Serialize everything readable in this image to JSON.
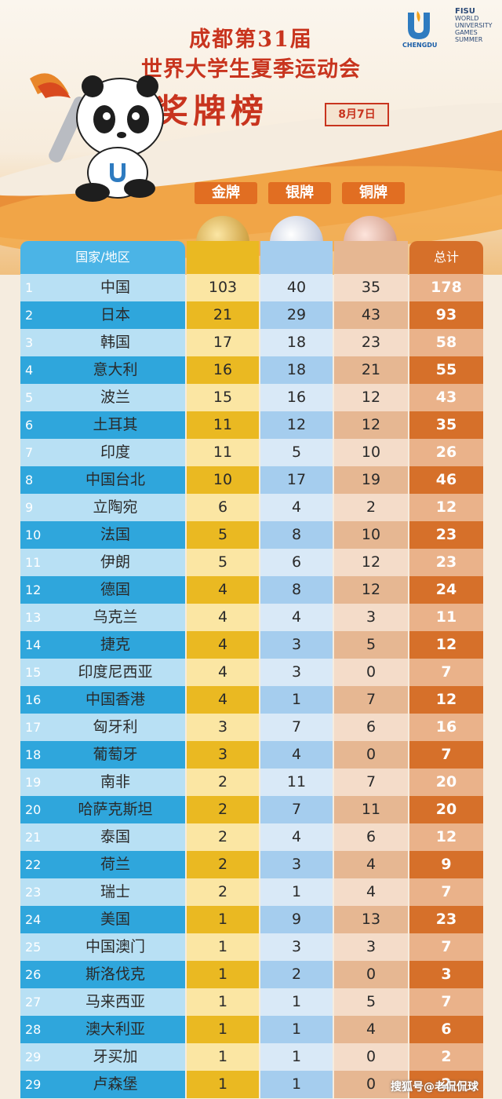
{
  "header": {
    "line1": "成都第31届",
    "line2": "世界大学生夏季运动会",
    "line3": "奖牌榜",
    "date": "8月7日",
    "host_logo_text": "CHENGDU",
    "fisu_title": "FISU",
    "fisu_lines": [
      "WORLD",
      "UNIVERSITY",
      "GAMES",
      "SUMMER"
    ]
  },
  "medals": {
    "gold": "金牌",
    "silver": "银牌",
    "bronze": "铜牌"
  },
  "columns": {
    "country": "国家/地区",
    "total": "总计"
  },
  "colors": {
    "gold": "#eab922",
    "silver": "#a5cdee",
    "bronze": "#e6b792",
    "total": "#d6702a",
    "country": "#2fa6dc",
    "title": "#c8341e"
  },
  "rows": [
    {
      "rank": "1",
      "name": "中国",
      "gold": "103",
      "silver": "40",
      "bronze": "35",
      "total": "178"
    },
    {
      "rank": "2",
      "name": "日本",
      "gold": "21",
      "silver": "29",
      "bronze": "43",
      "total": "93"
    },
    {
      "rank": "3",
      "name": "韩国",
      "gold": "17",
      "silver": "18",
      "bronze": "23",
      "total": "58"
    },
    {
      "rank": "4",
      "name": "意大利",
      "gold": "16",
      "silver": "18",
      "bronze": "21",
      "total": "55"
    },
    {
      "rank": "5",
      "name": "波兰",
      "gold": "15",
      "silver": "16",
      "bronze": "12",
      "total": "43"
    },
    {
      "rank": "6",
      "name": "土耳其",
      "gold": "11",
      "silver": "12",
      "bronze": "12",
      "total": "35"
    },
    {
      "rank": "7",
      "name": "印度",
      "gold": "11",
      "silver": "5",
      "bronze": "10",
      "total": "26"
    },
    {
      "rank": "8",
      "name": "中国台北",
      "gold": "10",
      "silver": "17",
      "bronze": "19",
      "total": "46"
    },
    {
      "rank": "9",
      "name": "立陶宛",
      "gold": "6",
      "silver": "4",
      "bronze": "2",
      "total": "12"
    },
    {
      "rank": "10",
      "name": "法国",
      "gold": "5",
      "silver": "8",
      "bronze": "10",
      "total": "23"
    },
    {
      "rank": "11",
      "name": "伊朗",
      "gold": "5",
      "silver": "6",
      "bronze": "12",
      "total": "23"
    },
    {
      "rank": "12",
      "name": "德国",
      "gold": "4",
      "silver": "8",
      "bronze": "12",
      "total": "24"
    },
    {
      "rank": "13",
      "name": "乌克兰",
      "gold": "4",
      "silver": "4",
      "bronze": "3",
      "total": "11"
    },
    {
      "rank": "14",
      "name": "捷克",
      "gold": "4",
      "silver": "3",
      "bronze": "5",
      "total": "12"
    },
    {
      "rank": "15",
      "name": "印度尼西亚",
      "gold": "4",
      "silver": "3",
      "bronze": "0",
      "total": "7"
    },
    {
      "rank": "16",
      "name": "中国香港",
      "gold": "4",
      "silver": "1",
      "bronze": "7",
      "total": "12"
    },
    {
      "rank": "17",
      "name": "匈牙利",
      "gold": "3",
      "silver": "7",
      "bronze": "6",
      "total": "16"
    },
    {
      "rank": "18",
      "name": "葡萄牙",
      "gold": "3",
      "silver": "4",
      "bronze": "0",
      "total": "7"
    },
    {
      "rank": "19",
      "name": "南非",
      "gold": "2",
      "silver": "11",
      "bronze": "7",
      "total": "20"
    },
    {
      "rank": "20",
      "name": "哈萨克斯坦",
      "gold": "2",
      "silver": "7",
      "bronze": "11",
      "total": "20"
    },
    {
      "rank": "21",
      "name": "泰国",
      "gold": "2",
      "silver": "4",
      "bronze": "6",
      "total": "12"
    },
    {
      "rank": "22",
      "name": "荷兰",
      "gold": "2",
      "silver": "3",
      "bronze": "4",
      "total": "9"
    },
    {
      "rank": "23",
      "name": "瑞士",
      "gold": "2",
      "silver": "1",
      "bronze": "4",
      "total": "7"
    },
    {
      "rank": "24",
      "name": "美国",
      "gold": "1",
      "silver": "9",
      "bronze": "13",
      "total": "23"
    },
    {
      "rank": "25",
      "name": "中国澳门",
      "gold": "1",
      "silver": "3",
      "bronze": "3",
      "total": "7"
    },
    {
      "rank": "26",
      "name": "斯洛伐克",
      "gold": "1",
      "silver": "2",
      "bronze": "0",
      "total": "3"
    },
    {
      "rank": "27",
      "name": "马来西亚",
      "gold": "1",
      "silver": "1",
      "bronze": "5",
      "total": "7"
    },
    {
      "rank": "28",
      "name": "澳大利亚",
      "gold": "1",
      "silver": "1",
      "bronze": "4",
      "total": "6"
    },
    {
      "rank": "29",
      "name": "牙买加",
      "gold": "1",
      "silver": "1",
      "bronze": "0",
      "total": "2"
    },
    {
      "rank": "29",
      "name": "卢森堡",
      "gold": "1",
      "silver": "1",
      "bronze": "0",
      "total": "2"
    }
  ],
  "watermark": "搜狐号@老侃侃球"
}
